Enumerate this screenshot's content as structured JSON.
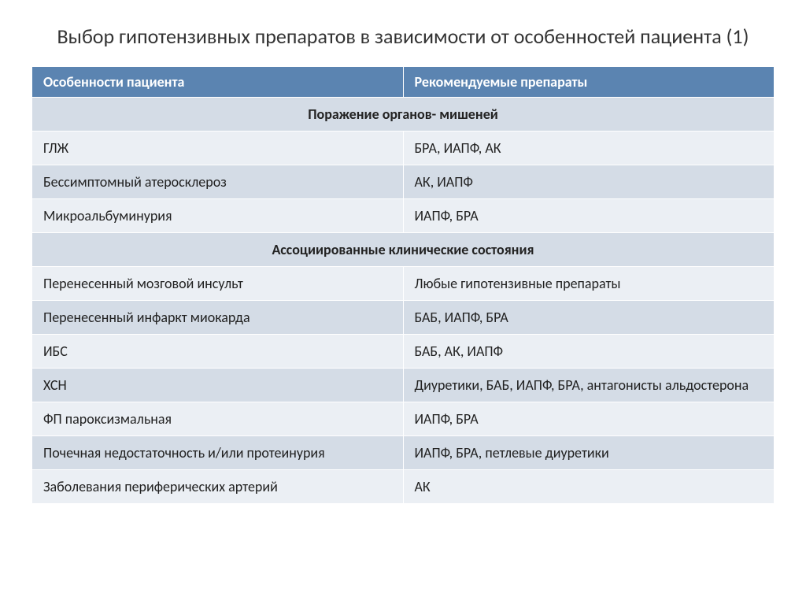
{
  "title": "Выбор гипотензивных препаратов в зависимости от особенностей пациента (1)",
  "table": {
    "header_bg": "#5b84b1",
    "row_bg_odd": "#d4dce6",
    "row_bg_even": "#ebeff4",
    "columns": [
      "Особенности пациента",
      "Рекомендуемые препараты"
    ],
    "sections": [
      {
        "title": "Поражение органов- мишеней",
        "rows": [
          {
            "c1": "ГЛЖ",
            "c2": "БРА, ИАПФ, АК"
          },
          {
            "c1": "Бессимптомный атеросклероз",
            "c2": "АК, ИАПФ"
          },
          {
            "c1": "Микроальбуминурия",
            "c2": "ИАПФ, БРА"
          }
        ]
      },
      {
        "title": "Ассоциированные клинические состояния",
        "rows": [
          {
            "c1": "Перенесенный мозговой инсульт",
            "c2": "Любые гипотензивные препараты"
          },
          {
            "c1": "Перенесенный инфаркт миокарда",
            "c2": "БАБ, ИАПФ, БРА"
          },
          {
            "c1": "ИБС",
            "c2": "БАБ, АК, ИАПФ"
          },
          {
            "c1": "ХСН",
            "c2": "Диуретики, БАБ, ИАПФ, БРА, антагонисты альдостерона"
          },
          {
            "c1": "ФП пароксизмальная",
            "c2": "ИАПФ, БРА"
          },
          {
            "c1": "Почечная недостаточность и/или протеинурия",
            "c2": "ИАПФ, БРА, петлевые диуретики"
          },
          {
            "c1": "Заболевания периферических артерий",
            "c2": "АК"
          }
        ]
      }
    ]
  }
}
